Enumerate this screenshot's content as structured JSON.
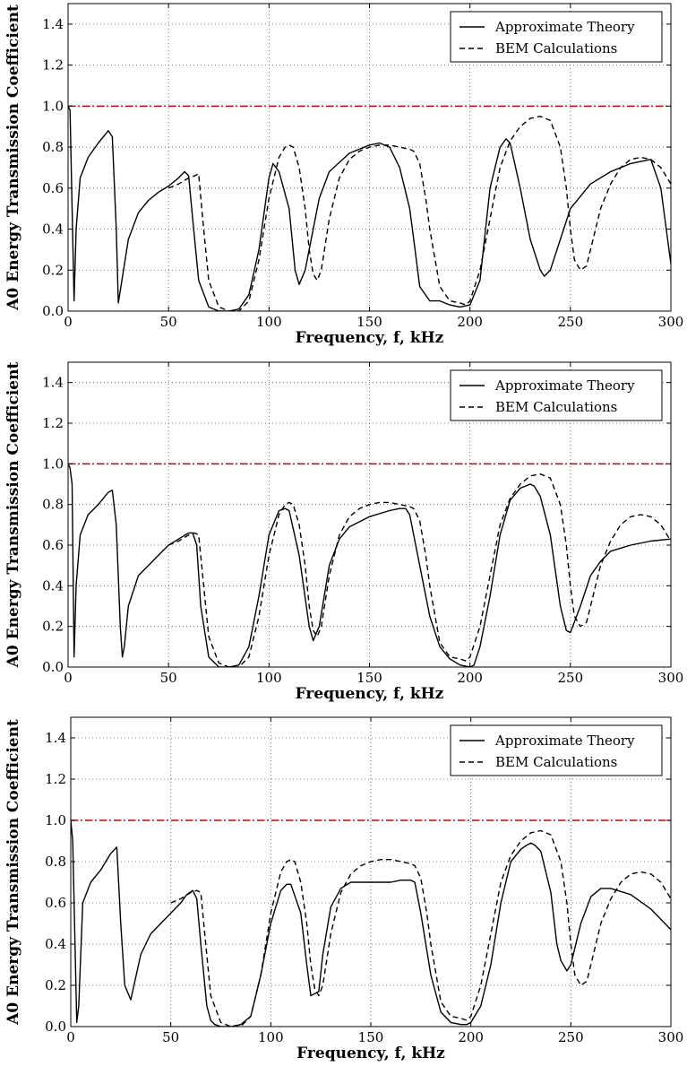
{
  "chart_data": [
    {
      "type": "line",
      "xlabel": "Frequency, f, kHz",
      "ylabel": "A0 Energy Transmission Coefficient",
      "xlim": [
        0,
        300
      ],
      "ylim": [
        0,
        1.5
      ],
      "x_ticks": [
        "0",
        "50",
        "100",
        "150",
        "200",
        "250",
        "300"
      ],
      "y_ticks": [
        "0.0",
        "0.2",
        "0.4",
        "0.6",
        "0.8",
        "1.0",
        "1.2",
        "1.4"
      ],
      "grid": true,
      "legend_position": "top-right",
      "reference_line": {
        "y": 1.0,
        "color": "#cc0000",
        "style": "dash-dot"
      },
      "series": [
        {
          "name": "Approximate Theory",
          "style": "solid",
          "x": [
            0,
            1,
            2,
            3,
            4,
            6,
            10,
            15,
            20,
            22,
            24,
            25,
            26,
            30,
            35,
            40,
            45,
            50,
            55,
            58,
            60,
            62,
            65,
            70,
            75,
            80,
            85,
            90,
            95,
            100,
            102,
            105,
            110,
            113,
            115,
            118,
            120,
            125,
            130,
            140,
            150,
            155,
            160,
            165,
            170,
            172,
            175,
            180,
            185,
            190,
            195,
            200,
            205,
            210,
            215,
            218,
            220,
            225,
            230,
            235,
            237,
            240,
            245,
            250,
            260,
            270,
            280,
            285,
            290,
            295,
            300
          ],
          "y": [
            1.0,
            0.98,
            0.5,
            0.05,
            0.4,
            0.65,
            0.75,
            0.82,
            0.88,
            0.85,
            0.4,
            0.04,
            0.1,
            0.35,
            0.48,
            0.54,
            0.58,
            0.61,
            0.65,
            0.68,
            0.66,
            0.45,
            0.15,
            0.02,
            0.0,
            0.0,
            0.01,
            0.08,
            0.3,
            0.65,
            0.72,
            0.68,
            0.5,
            0.2,
            0.13,
            0.2,
            0.3,
            0.55,
            0.68,
            0.77,
            0.81,
            0.82,
            0.8,
            0.7,
            0.5,
            0.35,
            0.12,
            0.05,
            0.05,
            0.03,
            0.02,
            0.03,
            0.15,
            0.6,
            0.8,
            0.84,
            0.82,
            0.6,
            0.35,
            0.2,
            0.17,
            0.2,
            0.35,
            0.5,
            0.62,
            0.68,
            0.72,
            0.73,
            0.74,
            0.6,
            0.23
          ]
        },
        {
          "name": "BEM Calculations",
          "style": "dashed",
          "x": [
            50,
            55,
            60,
            63,
            65,
            67,
            70,
            75,
            80,
            85,
            90,
            95,
            100,
            105,
            108,
            110,
            112,
            115,
            118,
            120,
            122,
            124,
            126,
            130,
            135,
            140,
            145,
            150,
            155,
            160,
            165,
            170,
            172,
            175,
            178,
            180,
            185,
            190,
            195,
            198,
            200,
            205,
            210,
            215,
            220,
            225,
            230,
            235,
            240,
            245,
            248,
            250,
            252,
            255,
            258,
            260,
            265,
            270,
            275,
            280,
            285,
            290,
            295,
            300
          ],
          "y": [
            0.6,
            0.62,
            0.65,
            0.66,
            0.67,
            0.45,
            0.15,
            0.02,
            0.0,
            0.0,
            0.05,
            0.25,
            0.55,
            0.75,
            0.8,
            0.81,
            0.8,
            0.7,
            0.5,
            0.3,
            0.18,
            0.15,
            0.2,
            0.45,
            0.65,
            0.74,
            0.78,
            0.8,
            0.81,
            0.81,
            0.8,
            0.79,
            0.78,
            0.72,
            0.55,
            0.4,
            0.12,
            0.05,
            0.04,
            0.03,
            0.05,
            0.2,
            0.45,
            0.7,
            0.83,
            0.9,
            0.94,
            0.95,
            0.93,
            0.8,
            0.6,
            0.4,
            0.25,
            0.2,
            0.22,
            0.3,
            0.5,
            0.62,
            0.7,
            0.74,
            0.75,
            0.74,
            0.7,
            0.62
          ]
        }
      ]
    },
    {
      "type": "line",
      "xlabel": "Frequency, f, kHz",
      "ylabel": "A0 Energy Transmission Coefficient",
      "xlim": [
        0,
        300
      ],
      "ylim": [
        0,
        1.5
      ],
      "x_ticks": [
        "0",
        "50",
        "100",
        "150",
        "200",
        "250",
        "300"
      ],
      "y_ticks": [
        "0.0",
        "0.2",
        "0.4",
        "0.6",
        "0.8",
        "1.0",
        "1.2",
        "1.4"
      ],
      "grid": true,
      "legend_position": "top-right",
      "reference_line": {
        "y": 1.0,
        "color": "#cc0000",
        "style": "dash-dot"
      },
      "series": [
        {
          "name": "Approximate Theory",
          "style": "solid",
          "x": [
            0,
            1,
            2,
            3,
            4,
            6,
            10,
            15,
            20,
            22,
            24,
            26,
            27,
            28,
            30,
            35,
            40,
            45,
            50,
            55,
            60,
            62,
            64,
            66,
            70,
            75,
            80,
            85,
            90,
            95,
            100,
            105,
            108,
            110,
            115,
            120,
            122,
            125,
            130,
            135,
            140,
            150,
            160,
            165,
            168,
            170,
            175,
            180,
            185,
            190,
            195,
            200,
            202,
            205,
            210,
            215,
            220,
            225,
            230,
            232,
            235,
            240,
            245,
            248,
            250,
            255,
            260,
            265,
            270,
            280,
            290,
            300
          ],
          "y": [
            1.0,
            0.98,
            0.9,
            0.05,
            0.4,
            0.65,
            0.75,
            0.8,
            0.86,
            0.87,
            0.7,
            0.2,
            0.05,
            0.1,
            0.3,
            0.45,
            0.5,
            0.55,
            0.6,
            0.63,
            0.66,
            0.66,
            0.6,
            0.3,
            0.05,
            0.0,
            0.0,
            0.01,
            0.1,
            0.35,
            0.65,
            0.77,
            0.78,
            0.77,
            0.55,
            0.2,
            0.13,
            0.2,
            0.5,
            0.63,
            0.69,
            0.74,
            0.77,
            0.78,
            0.78,
            0.75,
            0.5,
            0.25,
            0.1,
            0.04,
            0.01,
            0.0,
            0.01,
            0.1,
            0.35,
            0.65,
            0.82,
            0.88,
            0.9,
            0.89,
            0.84,
            0.65,
            0.3,
            0.18,
            0.17,
            0.3,
            0.45,
            0.52,
            0.57,
            0.6,
            0.62,
            0.63
          ]
        },
        {
          "name": "BEM Calculations",
          "style": "dashed",
          "x": [
            50,
            55,
            60,
            63,
            65,
            67,
            70,
            75,
            80,
            85,
            90,
            95,
            100,
            105,
            108,
            110,
            112,
            115,
            118,
            120,
            122,
            124,
            126,
            130,
            135,
            140,
            145,
            150,
            155,
            160,
            165,
            170,
            172,
            175,
            178,
            180,
            185,
            190,
            195,
            198,
            200,
            205,
            210,
            215,
            220,
            225,
            230,
            235,
            240,
            245,
            248,
            250,
            252,
            255,
            258,
            260,
            265,
            270,
            275,
            280,
            285,
            290,
            295,
            300
          ],
          "y": [
            0.6,
            0.62,
            0.65,
            0.66,
            0.65,
            0.45,
            0.15,
            0.02,
            0.0,
            0.0,
            0.05,
            0.25,
            0.55,
            0.75,
            0.8,
            0.81,
            0.8,
            0.7,
            0.5,
            0.3,
            0.18,
            0.15,
            0.2,
            0.45,
            0.65,
            0.74,
            0.78,
            0.8,
            0.81,
            0.81,
            0.8,
            0.79,
            0.78,
            0.72,
            0.55,
            0.4,
            0.12,
            0.05,
            0.04,
            0.03,
            0.05,
            0.2,
            0.45,
            0.7,
            0.83,
            0.9,
            0.94,
            0.95,
            0.93,
            0.8,
            0.6,
            0.4,
            0.25,
            0.2,
            0.22,
            0.3,
            0.5,
            0.62,
            0.7,
            0.74,
            0.75,
            0.74,
            0.7,
            0.62
          ]
        }
      ]
    },
    {
      "type": "line",
      "xlabel": "Frequency, f, kHz",
      "ylabel": "A0 Energy Transmission Coefficient",
      "xlim": [
        0,
        300
      ],
      "ylim": [
        0,
        1.5
      ],
      "x_ticks": [
        "0",
        "50",
        "100",
        "150",
        "200",
        "250",
        "300"
      ],
      "y_ticks": [
        "0.0",
        "0.2",
        "0.4",
        "0.6",
        "0.8",
        "1.0",
        "1.2",
        "1.4"
      ],
      "grid": true,
      "legend_position": "top-right",
      "reference_line": {
        "y": 1.0,
        "color": "#cc0000",
        "style": "dash-dot"
      },
      "series": [
        {
          "name": "Approximate Theory",
          "style": "solid",
          "x": [
            0,
            1,
            3,
            4,
            6,
            10,
            15,
            20,
            22,
            23,
            25,
            27,
            30,
            35,
            40,
            45,
            50,
            55,
            58,
            61,
            63,
            65,
            68,
            70,
            72,
            75,
            80,
            85,
            90,
            95,
            100,
            105,
            108,
            110,
            115,
            118,
            120,
            122,
            124,
            126,
            130,
            135,
            140,
            145,
            150,
            160,
            165,
            170,
            172,
            175,
            180,
            185,
            190,
            195,
            198,
            200,
            205,
            210,
            215,
            220,
            225,
            228,
            230,
            232,
            235,
            240,
            243,
            245,
            248,
            250,
            255,
            260,
            265,
            270,
            280,
            290,
            300
          ],
          "y": [
            1.0,
            0.9,
            0.02,
            0.1,
            0.6,
            0.7,
            0.76,
            0.84,
            0.86,
            0.87,
            0.5,
            0.2,
            0.13,
            0.35,
            0.45,
            0.5,
            0.55,
            0.6,
            0.64,
            0.66,
            0.62,
            0.4,
            0.1,
            0.03,
            0.01,
            0.0,
            0.0,
            0.01,
            0.05,
            0.25,
            0.5,
            0.66,
            0.69,
            0.69,
            0.55,
            0.3,
            0.15,
            0.16,
            0.17,
            0.35,
            0.58,
            0.67,
            0.7,
            0.7,
            0.7,
            0.7,
            0.71,
            0.71,
            0.7,
            0.55,
            0.25,
            0.07,
            0.02,
            0.01,
            0.01,
            0.02,
            0.1,
            0.3,
            0.6,
            0.8,
            0.86,
            0.88,
            0.89,
            0.88,
            0.85,
            0.65,
            0.4,
            0.32,
            0.27,
            0.3,
            0.5,
            0.63,
            0.67,
            0.67,
            0.64,
            0.57,
            0.47
          ]
        },
        {
          "name": "BEM Calculations",
          "style": "dashed",
          "x": [
            50,
            55,
            60,
            63,
            65,
            67,
            70,
            75,
            80,
            85,
            90,
            95,
            100,
            105,
            108,
            110,
            112,
            115,
            118,
            120,
            122,
            124,
            126,
            130,
            135,
            140,
            145,
            150,
            155,
            160,
            165,
            170,
            172,
            175,
            178,
            180,
            185,
            190,
            195,
            198,
            200,
            205,
            210,
            215,
            220,
            225,
            230,
            235,
            240,
            245,
            248,
            250,
            252,
            255,
            258,
            260,
            265,
            270,
            275,
            280,
            285,
            290,
            295,
            300
          ],
          "y": [
            0.6,
            0.62,
            0.65,
            0.66,
            0.65,
            0.45,
            0.15,
            0.02,
            0.0,
            0.0,
            0.05,
            0.25,
            0.55,
            0.75,
            0.8,
            0.81,
            0.8,
            0.7,
            0.5,
            0.3,
            0.18,
            0.15,
            0.2,
            0.45,
            0.65,
            0.74,
            0.78,
            0.8,
            0.81,
            0.81,
            0.8,
            0.79,
            0.78,
            0.72,
            0.55,
            0.4,
            0.12,
            0.05,
            0.04,
            0.03,
            0.05,
            0.2,
            0.45,
            0.7,
            0.83,
            0.9,
            0.94,
            0.95,
            0.93,
            0.8,
            0.6,
            0.4,
            0.25,
            0.2,
            0.22,
            0.3,
            0.5,
            0.62,
            0.7,
            0.74,
            0.75,
            0.74,
            0.7,
            0.62
          ]
        }
      ]
    }
  ]
}
